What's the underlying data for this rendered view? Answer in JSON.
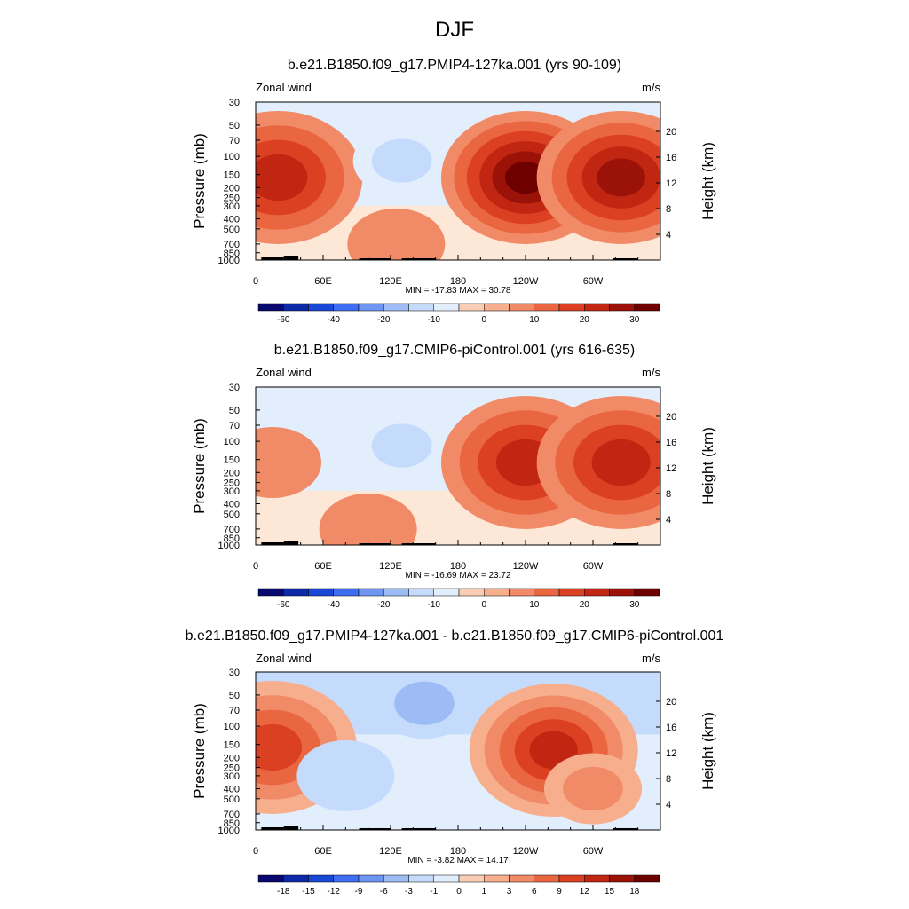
{
  "figure_title": "DJF",
  "colors": {
    "palette": [
      "#08086e",
      "#0c2aa8",
      "#1a48d6",
      "#3f6ff0",
      "#6f95f2",
      "#9dbcf5",
      "#c5dbfb",
      "#e3eefd",
      "#fde7d7",
      "#f9cdb3",
      "#f6ae8d",
      "#f18a66",
      "#ea6641",
      "#db4022",
      "#c12612",
      "#9b1208",
      "#6e0000"
    ],
    "frame": "#000000",
    "topography": "#000000"
  },
  "chart_data": [
    {
      "type": "heatmap",
      "title": "b.e21.B1850.f09_g17.PMIP4-127ka.001 (yrs 90-109)",
      "field_label": "Zonal wind",
      "units": "m/s",
      "ylabel": "Pressure (mb)",
      "ylabel_right": "Height (km)",
      "x_ticks": [
        "0",
        "60E",
        "120E",
        "180",
        "120W",
        "60W"
      ],
      "y_ticks": [
        "30",
        "50",
        "70",
        "100",
        "150",
        "200",
        "250",
        "300",
        "400",
        "500",
        "700",
        "850",
        "1000"
      ],
      "y_ticks_right": [
        "20",
        "16",
        "12",
        "8",
        "4"
      ],
      "minmax": "MIN = -17.83  MAX =  30.78",
      "colorbar_labels": [
        "-60",
        "-40",
        "-20",
        "-10",
        "0",
        "10",
        "20",
        "30"
      ],
      "features": [
        {
          "lon": 20,
          "p": 160,
          "value": 20
        },
        {
          "lon": 130,
          "p": 110,
          "value": -12
        },
        {
          "lon": 240,
          "p": 160,
          "value": 31
        },
        {
          "lon": 325,
          "p": 160,
          "value": 28
        },
        {
          "lon": 125,
          "p": 700,
          "value": 6
        }
      ]
    },
    {
      "type": "heatmap",
      "title": "b.e21.B1850.f09_g17.CMIP6-piControl.001 (yrs 616-635)",
      "field_label": "Zonal wind",
      "units": "m/s",
      "ylabel": "Pressure (mb)",
      "ylabel_right": "Height (km)",
      "x_ticks": [
        "0",
        "60E",
        "120E",
        "180",
        "120W",
        "60W"
      ],
      "y_ticks": [
        "30",
        "50",
        "70",
        "100",
        "150",
        "200",
        "250",
        "300",
        "400",
        "500",
        "700",
        "850",
        "1000"
      ],
      "y_ticks_right": [
        "20",
        "16",
        "12",
        "8",
        "4"
      ],
      "minmax": "MIN = -16.69  MAX =  23.72",
      "colorbar_labels": [
        "-60",
        "-40",
        "-20",
        "-10",
        "0",
        "10",
        "20",
        "30"
      ],
      "features": [
        {
          "lon": 15,
          "p": 160,
          "value": 8
        },
        {
          "lon": 130,
          "p": 110,
          "value": -12
        },
        {
          "lon": 240,
          "p": 160,
          "value": 24
        },
        {
          "lon": 325,
          "p": 160,
          "value": 22
        },
        {
          "lon": 100,
          "p": 700,
          "value": 6
        }
      ]
    },
    {
      "type": "heatmap",
      "title": "b.e21.B1850.f09_g17.PMIP4-127ka.001 - b.e21.B1850.f09_g17.CMIP6-piControl.001",
      "field_label": "Zonal wind",
      "units": "m/s",
      "ylabel": "Pressure (mb)",
      "ylabel_right": "Height (km)",
      "x_ticks": [
        "0",
        "60E",
        "120E",
        "180",
        "120W",
        "60W"
      ],
      "y_ticks": [
        "30",
        "50",
        "70",
        "100",
        "150",
        "200",
        "250",
        "300",
        "400",
        "500",
        "700",
        "850",
        "1000"
      ],
      "y_ticks_right": [
        "20",
        "16",
        "12",
        "8",
        "4"
      ],
      "minmax": "MIN = -3.82  MAX = 14.17",
      "colorbar_labels": [
        "-18",
        "-15",
        "-12",
        "-9",
        "-6",
        "-3",
        "-1",
        "0",
        "1",
        "3",
        "6",
        "9",
        "12",
        "15",
        "18"
      ],
      "features": [
        {
          "lon": 15,
          "p": 160,
          "value": 11
        },
        {
          "lon": 150,
          "p": 60,
          "value": -3
        },
        {
          "lon": 265,
          "p": 170,
          "value": 14
        },
        {
          "lon": 80,
          "p": 300,
          "value": -2
        },
        {
          "lon": 300,
          "p": 400,
          "value": 4
        }
      ]
    }
  ]
}
